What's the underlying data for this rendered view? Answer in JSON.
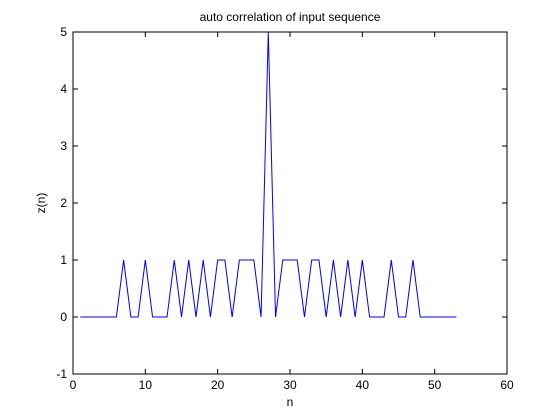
{
  "chart_data": {
    "type": "line",
    "title": "auto correlation of input sequence",
    "xlabel": "n",
    "ylabel": "z(n)",
    "xlim": [
      0,
      60
    ],
    "ylim": [
      -1,
      5
    ],
    "xticks": [
      0,
      10,
      20,
      30,
      40,
      50,
      60
    ],
    "yticks": [
      -1,
      0,
      1,
      2,
      3,
      4,
      5
    ],
    "grid": false,
    "line_color": "#0000ff",
    "x": [
      1,
      2,
      3,
      4,
      5,
      6,
      7,
      8,
      9,
      10,
      11,
      12,
      13,
      14,
      15,
      16,
      17,
      18,
      19,
      20,
      21,
      22,
      23,
      24,
      25,
      26,
      27,
      28,
      29,
      30,
      31,
      32,
      33,
      34,
      35,
      36,
      37,
      38,
      39,
      40,
      41,
      42,
      43,
      44,
      45,
      46,
      47,
      48,
      49,
      50,
      51,
      52,
      53
    ],
    "y": [
      0,
      0,
      0,
      0,
      0,
      0,
      1,
      0,
      0,
      1,
      0,
      0,
      0,
      1,
      0,
      1,
      0,
      1,
      0,
      1,
      1,
      0,
      1,
      1,
      1,
      0,
      5,
      0,
      1,
      1,
      1,
      0,
      1,
      1,
      0,
      1,
      0,
      1,
      0,
      1,
      0,
      0,
      0,
      1,
      0,
      0,
      1,
      0,
      0,
      0,
      0,
      0,
      0
    ]
  }
}
